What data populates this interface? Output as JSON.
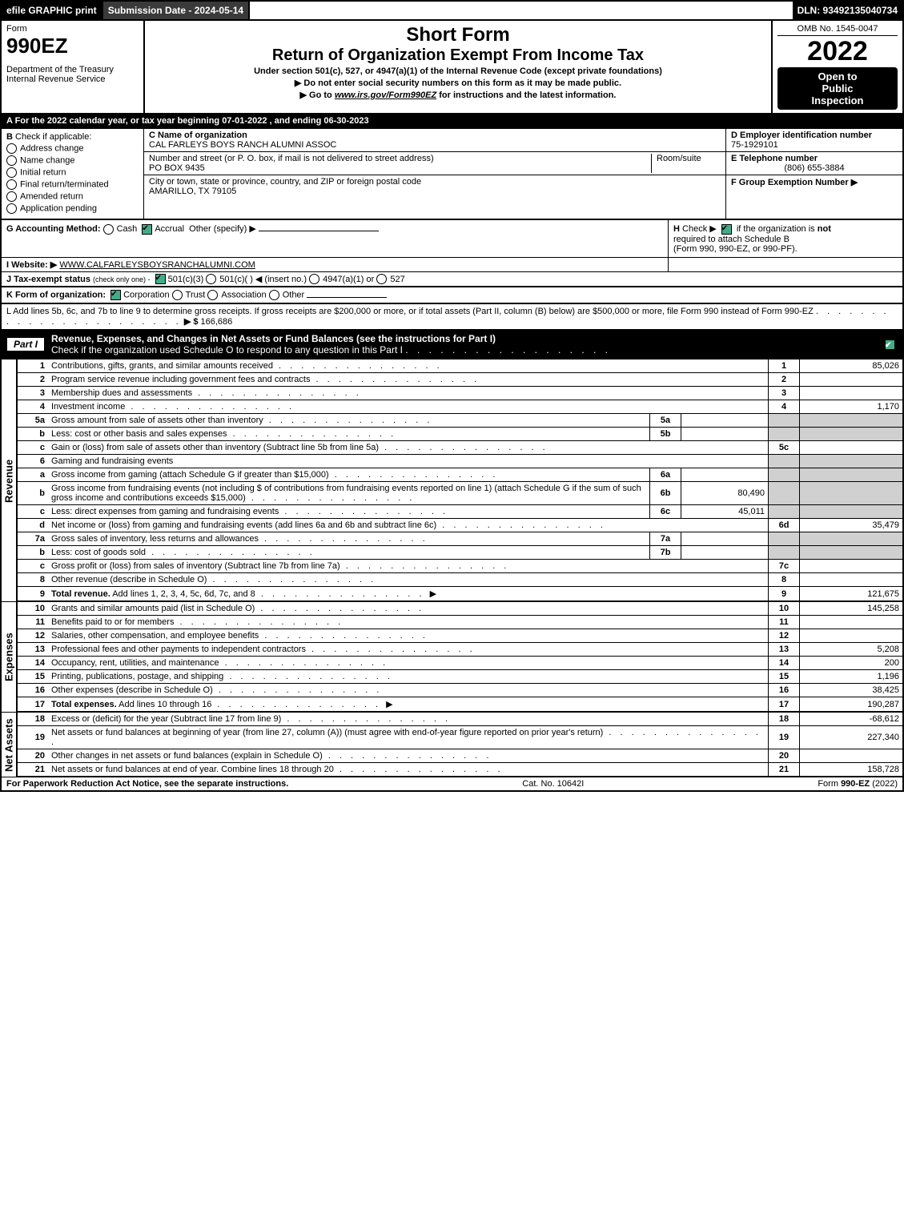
{
  "topbar": {
    "efile": "efile GRAPHIC print",
    "submission_label": "Submission Date - 2024-05-14",
    "dln": "DLN: 93492135040734"
  },
  "header": {
    "form_label": "Form",
    "form_number": "990EZ",
    "department": "Department of the Treasury",
    "irs": "Internal Revenue Service",
    "title1": "Short Form",
    "title2": "Return of Organization Exempt From Income Tax",
    "subtitle1": "Under section 501(c), 527, or 4947(a)(1) of the Internal Revenue Code (except private foundations)",
    "subtitle2": "▶ Do not enter social security numbers on this form as it may be made public.",
    "subtitle3_pre": "▶ Go to ",
    "subtitle3_link": "www.irs.gov/Form990EZ",
    "subtitle3_post": " for instructions and the latest information.",
    "omb": "OMB No. 1545-0047",
    "year": "2022",
    "inspection1": "Open to",
    "inspection2": "Public",
    "inspection3": "Inspection"
  },
  "row_a": "A  For the 2022 calendar year, or tax year beginning 07-01-2022  , and ending 06-30-2023",
  "section_b": {
    "label": "B",
    "check_if": "Check if applicable:",
    "options": [
      "Address change",
      "Name change",
      "Initial return",
      "Final return/terminated",
      "Amended return",
      "Application pending"
    ]
  },
  "section_c": {
    "label_name": "C Name of organization",
    "org_name": "CAL FARLEYS BOYS RANCH ALUMNI ASSOC",
    "label_street": "Number and street (or P. O. box, if mail is not delivered to street address)",
    "room_label": "Room/suite",
    "street": "PO BOX 9435",
    "label_city": "City or town, state or province, country, and ZIP or foreign postal code",
    "city": "AMARILLO, TX  79105"
  },
  "section_def": {
    "d_label": "D Employer identification number",
    "d_value": "75-1929101",
    "e_label": "E Telephone number",
    "e_value": "(806) 655-3884",
    "f_label": "F Group Exemption Number",
    "f_arrow": "▶"
  },
  "section_g": {
    "label": "G Accounting Method:",
    "cash": "Cash",
    "accrual": "Accrual",
    "other": "Other (specify) ▶"
  },
  "section_h": {
    "label": "H",
    "text1": "Check ▶",
    "text2": "if the organization is",
    "text3": "not",
    "text4": "required to attach Schedule B",
    "text5": "(Form 990, 990-EZ, or 990-PF)."
  },
  "section_i": {
    "label": "I Website: ▶",
    "value": "WWW.CALFARLEYSBOYSRANCHALUMNI.COM"
  },
  "section_j": {
    "label": "J Tax-exempt status",
    "note": "(check only one) -",
    "opt1": "501(c)(3)",
    "opt2": "501(c)(    ) ◀ (insert no.)",
    "opt3": "4947(a)(1) or",
    "opt4": "527"
  },
  "section_k": {
    "label": "K Form of organization:",
    "opts": [
      "Corporation",
      "Trust",
      "Association",
      "Other"
    ]
  },
  "section_l": {
    "text1": "L Add lines 5b, 6c, and 7b to line 9 to determine gross receipts. If gross receipts are $200,000 or more, or if total assets (Part II, column (B) below) are $500,000 or more, file Form 990 instead of Form 990-EZ",
    "arrow": "▶ $",
    "value": "166,686"
  },
  "part1": {
    "label": "Part I",
    "title": "Revenue, Expenses, and Changes in Net Assets or Fund Balances (see the instructions for Part I)",
    "subtitle": "Check if the organization used Schedule O to respond to any question in this Part I"
  },
  "sections": {
    "revenue": "Revenue",
    "expenses": "Expenses",
    "netassets": "Net Assets"
  },
  "lines": [
    {
      "n": "1",
      "desc": "Contributions, gifts, grants, and similar amounts received",
      "lbl": "1",
      "val": "85,026"
    },
    {
      "n": "2",
      "desc": "Program service revenue including government fees and contracts",
      "lbl": "2",
      "val": ""
    },
    {
      "n": "3",
      "desc": "Membership dues and assessments",
      "lbl": "3",
      "val": ""
    },
    {
      "n": "4",
      "desc": "Investment income",
      "lbl": "4",
      "val": "1,170"
    },
    {
      "n": "5a",
      "desc": "Gross amount from sale of assets other than inventory",
      "sub_lbl": "5a",
      "sub_val": "",
      "grey": true
    },
    {
      "n": "b",
      "desc": "Less: cost or other basis and sales expenses",
      "sub_lbl": "5b",
      "sub_val": "",
      "grey": true
    },
    {
      "n": "c",
      "desc": "Gain or (loss) from sale of assets other than inventory (Subtract line 5b from line 5a)",
      "lbl": "5c",
      "val": ""
    },
    {
      "n": "6",
      "desc": "Gaming and fundraising events",
      "grey_full": true
    },
    {
      "n": "a",
      "desc": "Gross income from gaming (attach Schedule G if greater than $15,000)",
      "sub_lbl": "6a",
      "sub_val": "",
      "grey": true
    },
    {
      "n": "b",
      "desc": "Gross income from fundraising events (not including $                        of contributions from fundraising events reported on line 1) (attach Schedule G if the sum of such gross income and contributions exceeds $15,000)",
      "sub_lbl": "6b",
      "sub_val": "80,490",
      "grey": true
    },
    {
      "n": "c",
      "desc": "Less: direct expenses from gaming and fundraising events",
      "sub_lbl": "6c",
      "sub_val": "45,011",
      "grey": true
    },
    {
      "n": "d",
      "desc": "Net income or (loss) from gaming and fundraising events (add lines 6a and 6b and subtract line 6c)",
      "lbl": "6d",
      "val": "35,479"
    },
    {
      "n": "7a",
      "desc": "Gross sales of inventory, less returns and allowances",
      "sub_lbl": "7a",
      "sub_val": "",
      "grey": true
    },
    {
      "n": "b",
      "desc": "Less: cost of goods sold",
      "sub_lbl": "7b",
      "sub_val": "",
      "grey": true
    },
    {
      "n": "c",
      "desc": "Gross profit or (loss) from sales of inventory (Subtract line 7b from line 7a)",
      "lbl": "7c",
      "val": ""
    },
    {
      "n": "8",
      "desc": "Other revenue (describe in Schedule O)",
      "lbl": "8",
      "val": ""
    },
    {
      "n": "9",
      "desc_bold": "Total revenue.",
      "desc": " Add lines 1, 2, 3, 4, 5c, 6d, 7c, and 8",
      "lbl": "9",
      "val": "121,675",
      "arrow": true
    }
  ],
  "exp_lines": [
    {
      "n": "10",
      "desc": "Grants and similar amounts paid (list in Schedule O)",
      "lbl": "10",
      "val": "145,258"
    },
    {
      "n": "11",
      "desc": "Benefits paid to or for members",
      "lbl": "11",
      "val": ""
    },
    {
      "n": "12",
      "desc": "Salaries, other compensation, and employee benefits",
      "lbl": "12",
      "val": ""
    },
    {
      "n": "13",
      "desc": "Professional fees and other payments to independent contractors",
      "lbl": "13",
      "val": "5,208"
    },
    {
      "n": "14",
      "desc": "Occupancy, rent, utilities, and maintenance",
      "lbl": "14",
      "val": "200"
    },
    {
      "n": "15",
      "desc": "Printing, publications, postage, and shipping",
      "lbl": "15",
      "val": "1,196"
    },
    {
      "n": "16",
      "desc": "Other expenses (describe in Schedule O)",
      "lbl": "16",
      "val": "38,425"
    },
    {
      "n": "17",
      "desc_bold": "Total expenses.",
      "desc": " Add lines 10 through 16",
      "lbl": "17",
      "val": "190,287",
      "arrow": true
    }
  ],
  "na_lines": [
    {
      "n": "18",
      "desc": "Excess or (deficit) for the year (Subtract line 17 from line 9)",
      "lbl": "18",
      "val": "-68,612"
    },
    {
      "n": "19",
      "desc": "Net assets or fund balances at beginning of year (from line 27, column (A)) (must agree with end-of-year figure reported on prior year's return)",
      "lbl": "19",
      "val": "227,340"
    },
    {
      "n": "20",
      "desc": "Other changes in net assets or fund balances (explain in Schedule O)",
      "lbl": "20",
      "val": ""
    },
    {
      "n": "21",
      "desc": "Net assets or fund balances at end of year. Combine lines 18 through 20",
      "lbl": "21",
      "val": "158,728"
    }
  ],
  "footer": {
    "left": "For Paperwork Reduction Act Notice, see the separate instructions.",
    "center": "Cat. No. 10642I",
    "right_pre": "Form ",
    "right_bold": "990-EZ",
    "right_post": " (2022)"
  }
}
